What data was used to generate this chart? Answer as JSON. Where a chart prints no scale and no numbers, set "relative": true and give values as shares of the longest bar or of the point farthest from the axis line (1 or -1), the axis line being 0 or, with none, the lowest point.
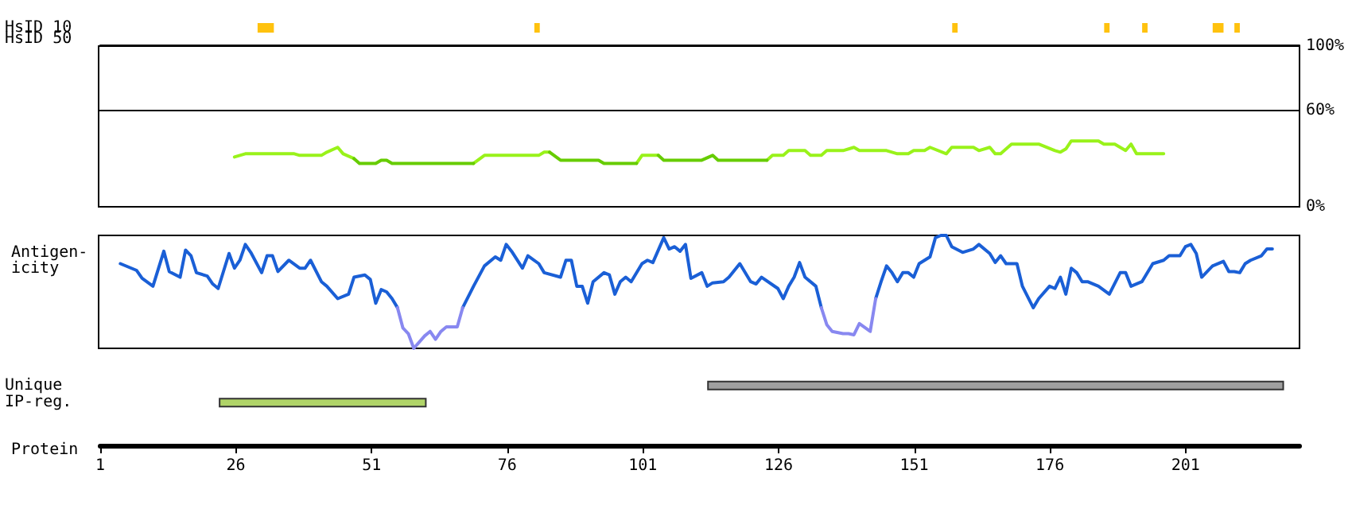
{
  "chart_data": [
    {
      "type": "bar",
      "orientation": "horizontal",
      "categories": [
        "HsID 10",
        "HsID 50"
      ],
      "xlim": [
        1,
        222
      ],
      "tick_labels": "y",
      "series": [
        {
          "color": "#ffc20e",
          "values": [
            3,
            null
          ],
          "base": [
            30,
            null
          ]
        },
        {
          "color": "#ffc20e",
          "values": [
            1,
            null
          ],
          "base": [
            81,
            null
          ]
        },
        {
          "color": "#ffc20e",
          "values": [
            1,
            null
          ],
          "base": [
            158,
            null
          ]
        },
        {
          "color": "#ffc20e",
          "values": [
            1,
            null
          ],
          "base": [
            186,
            null
          ]
        },
        {
          "color": "#ffc20e",
          "values": [
            1,
            null
          ],
          "base": [
            193,
            null
          ]
        },
        {
          "color": "#ffc20e",
          "values": [
            2,
            null
          ],
          "base": [
            206,
            null
          ]
        },
        {
          "color": "#ffc20e",
          "values": [
            1,
            null
          ],
          "base": [
            210,
            null
          ]
        }
      ]
    },
    {
      "type": "line",
      "xlim": [
        1,
        222
      ],
      "ylim": [
        0,
        100
      ],
      "yticks": [
        {
          "value": 0,
          "label": "0%"
        },
        {
          "value": 60,
          "label": "60%"
        },
        {
          "value": 100,
          "label": "100%"
        }
      ],
      "tick_labels": "y",
      "marker": "none",
      "line_style": "solid",
      "ref_lines": [
        {
          "axis": "y",
          "value": 60,
          "label": null,
          "color": "#000000"
        }
      ],
      "series": [
        {
          "color": "#99f21a",
          "x": [
            26,
            28,
            37,
            38,
            42,
            43,
            45,
            46,
            48,
            60,
            70,
            72,
            82,
            83,
            84,
            90,
            100,
            101,
            104,
            110,
            124,
            125,
            127,
            128,
            131,
            132,
            134,
            135,
            138,
            140,
            141,
            146,
            148,
            150,
            151,
            153,
            154,
            157,
            158,
            162,
            163,
            165,
            166,
            167,
            169,
            174,
            177,
            178,
            179,
            180,
            185,
            186,
            188,
            190,
            191,
            192,
            197
          ],
          "values": [
            31,
            33,
            33,
            32,
            32,
            34,
            37,
            33,
            30,
            null,
            27,
            32,
            32,
            34,
            34,
            null,
            27,
            32,
            32,
            null,
            29,
            32,
            32,
            35,
            35,
            32,
            32,
            35,
            35,
            37,
            35,
            35,
            33,
            33,
            35,
            35,
            37,
            33,
            37,
            37,
            35,
            37,
            33,
            33,
            39,
            39,
            35,
            34,
            36,
            41,
            41,
            39,
            39,
            35,
            39,
            33,
            33
          ]
        },
        {
          "color": "#66cc00",
          "x": [
            48,
            49,
            52,
            53,
            54,
            55,
            70,
            77,
            84,
            86,
            93,
            94,
            100,
            102,
            104,
            105,
            112,
            114,
            115,
            124
          ],
          "values": [
            30,
            27,
            27,
            29,
            29,
            27,
            27,
            null,
            34,
            29,
            29,
            27,
            27,
            null,
            32,
            29,
            29,
            32,
            29,
            29
          ]
        }
      ]
    },
    {
      "type": "line",
      "relative": true,
      "ylabel": "Antigen-\nicity",
      "xlim": [
        1,
        222
      ],
      "tick_labels": false,
      "marker": "none",
      "line_style": "solid",
      "series": [
        {
          "color": "#1a5fd6",
          "x": [
            5,
            8,
            9,
            11,
            13,
            14,
            16,
            17,
            18,
            19,
            21,
            22,
            23,
            25,
            26,
            27,
            28,
            29,
            31,
            32,
            33,
            34,
            36,
            38,
            39,
            40,
            42,
            43,
            45,
            47,
            48,
            50,
            51,
            52,
            53,
            54,
            55,
            56,
            62,
            68,
            70,
            72,
            74,
            75,
            76,
            77,
            79,
            80,
            82,
            83,
            86,
            87,
            88,
            89,
            90,
            91,
            92,
            94,
            95,
            96,
            97,
            98,
            99,
            101,
            102,
            103,
            105,
            106,
            107,
            108,
            109,
            110,
            112,
            113,
            114,
            116,
            117,
            119,
            121,
            122,
            123,
            126,
            127,
            128,
            129,
            130,
            131,
            133,
            134,
            139,
            144,
            145,
            146,
            147,
            148,
            149,
            150,
            151,
            152,
            154,
            155,
            156,
            157,
            158,
            160,
            162,
            163,
            165,
            166,
            167,
            168,
            170,
            171,
            173,
            174,
            176,
            177,
            178,
            179,
            180,
            181,
            182,
            183,
            185,
            187,
            189,
            190,
            191,
            193,
            195,
            197,
            198,
            200,
            201,
            202,
            203,
            204,
            206,
            208,
            209,
            210,
            211,
            212,
            213,
            215,
            216,
            217
          ],
          "values": [
            0.75,
            0.69,
            0.62,
            0.55,
            0.86,
            0.68,
            0.63,
            0.87,
            0.82,
            0.67,
            0.64,
            0.57,
            0.53,
            0.84,
            0.71,
            0.78,
            0.92,
            0.85,
            0.67,
            0.82,
            0.82,
            0.68,
            0.78,
            0.71,
            0.71,
            0.78,
            0.59,
            0.55,
            0.44,
            0.48,
            0.63,
            0.65,
            0.61,
            0.4,
            0.52,
            0.5,
            0.44,
            0.36,
            null,
            0.36,
            0.55,
            0.73,
            0.81,
            0.78,
            0.92,
            0.86,
            0.71,
            0.82,
            0.75,
            0.67,
            0.63,
            0.78,
            0.78,
            0.55,
            0.55,
            0.4,
            0.59,
            0.67,
            0.65,
            0.48,
            0.59,
            0.63,
            0.59,
            0.75,
            0.78,
            0.76,
            0.98,
            0.88,
            0.9,
            0.86,
            0.92,
            0.62,
            0.67,
            0.55,
            0.58,
            0.59,
            0.63,
            0.75,
            0.59,
            0.57,
            0.63,
            0.53,
            0.44,
            0.55,
            0.63,
            0.76,
            0.63,
            0.55,
            0.36,
            null,
            0.44,
            0.59,
            0.73,
            0.67,
            0.59,
            0.67,
            0.67,
            0.63,
            0.75,
            0.81,
            0.98,
            1,
            1,
            0.9,
            0.85,
            0.88,
            0.92,
            0.84,
            0.76,
            0.82,
            0.75,
            0.75,
            0.55,
            0.36,
            0.44,
            0.55,
            0.53,
            0.63,
            0.48,
            0.71,
            0.67,
            0.59,
            0.59,
            0.55,
            0.48,
            0.67,
            0.67,
            0.55,
            0.59,
            0.75,
            0.78,
            0.82,
            0.82,
            0.9,
            0.92,
            0.84,
            0.63,
            0.73,
            0.77,
            0.68,
            0.68,
            0.67,
            0.75,
            0.78,
            0.82,
            0.88,
            0.88
          ]
        },
        {
          "color": "#8888f0",
          "x": [
            56,
            57,
            58,
            59,
            61,
            62,
            63,
            64,
            65,
            67,
            68,
            100,
            134,
            135,
            136,
            138,
            139,
            140,
            141,
            143,
            144
          ],
          "values": [
            0.36,
            0.18,
            0.13,
            0,
            0.11,
            0.15,
            0.08,
            0.15,
            0.19,
            0.19,
            0.36,
            null,
            0.36,
            0.21,
            0.15,
            0.13,
            0.13,
            0.12,
            0.22,
            0.15,
            0.44
          ]
        }
      ]
    },
    {
      "type": "bar",
      "orientation": "horizontal",
      "categories": [
        "Unique",
        "IP-reg."
      ],
      "xlabel": "Protein",
      "xlim": [
        1,
        222
      ],
      "xticks": [
        1,
        26,
        51,
        76,
        101,
        126,
        151,
        176,
        201
      ],
      "values": [
        106,
        38
      ],
      "base": [
        113,
        23
      ],
      "colors": [
        "#a0a0a0",
        "#b0d468"
      ]
    }
  ]
}
